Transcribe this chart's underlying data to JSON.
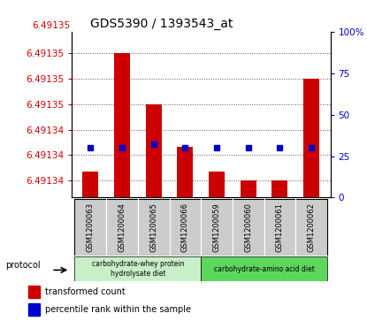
{
  "title": "GDS5390 / 1393543_at",
  "samples": [
    "GSM1200063",
    "GSM1200064",
    "GSM1200065",
    "GSM1200066",
    "GSM1200059",
    "GSM1200060",
    "GSM1200061",
    "GSM1200062"
  ],
  "transformed_counts": [
    6.491341,
    6.491355,
    6.491349,
    6.491344,
    6.491341,
    6.49134,
    6.49134,
    6.491352
  ],
  "percentile_ranks": [
    30,
    30,
    32,
    30,
    30,
    30,
    30,
    30
  ],
  "ymin": 6.491338,
  "ymax": 6.4913575,
  "left_yticks": [
    6.49134,
    6.491343,
    6.491346,
    6.491349,
    6.491352,
    6.491355
  ],
  "left_ylabels": [
    "6.49134",
    "6.49134",
    "6.49134",
    "6.49135",
    "6.49135",
    "6.49135"
  ],
  "right_yticks": [
    0,
    25,
    50,
    75,
    100
  ],
  "right_ytick_labels": [
    "0",
    "25",
    "50",
    "75",
    "100%"
  ],
  "bar_color": "#cc0000",
  "square_color": "#0000cc",
  "group1_label": "carbohydrate-whey protein\nhydrolysate diet",
  "group2_label": "carbohydrate-amino acid diet",
  "group1_color": "#c8f0c8",
  "group2_color": "#5cd65c",
  "protocol_label": "protocol",
  "legend_bar_label": "transformed count",
  "legend_square_label": "percentile rank within the sample",
  "grid_color": "#555555",
  "title_fontsize": 10,
  "axis_fontsize": 7.5,
  "tick_color_left": "#cc0000",
  "tick_color_right": "#0000cc",
  "bar_width": 0.5,
  "sample_box_color": "#cccccc",
  "top_label": "6.49135"
}
